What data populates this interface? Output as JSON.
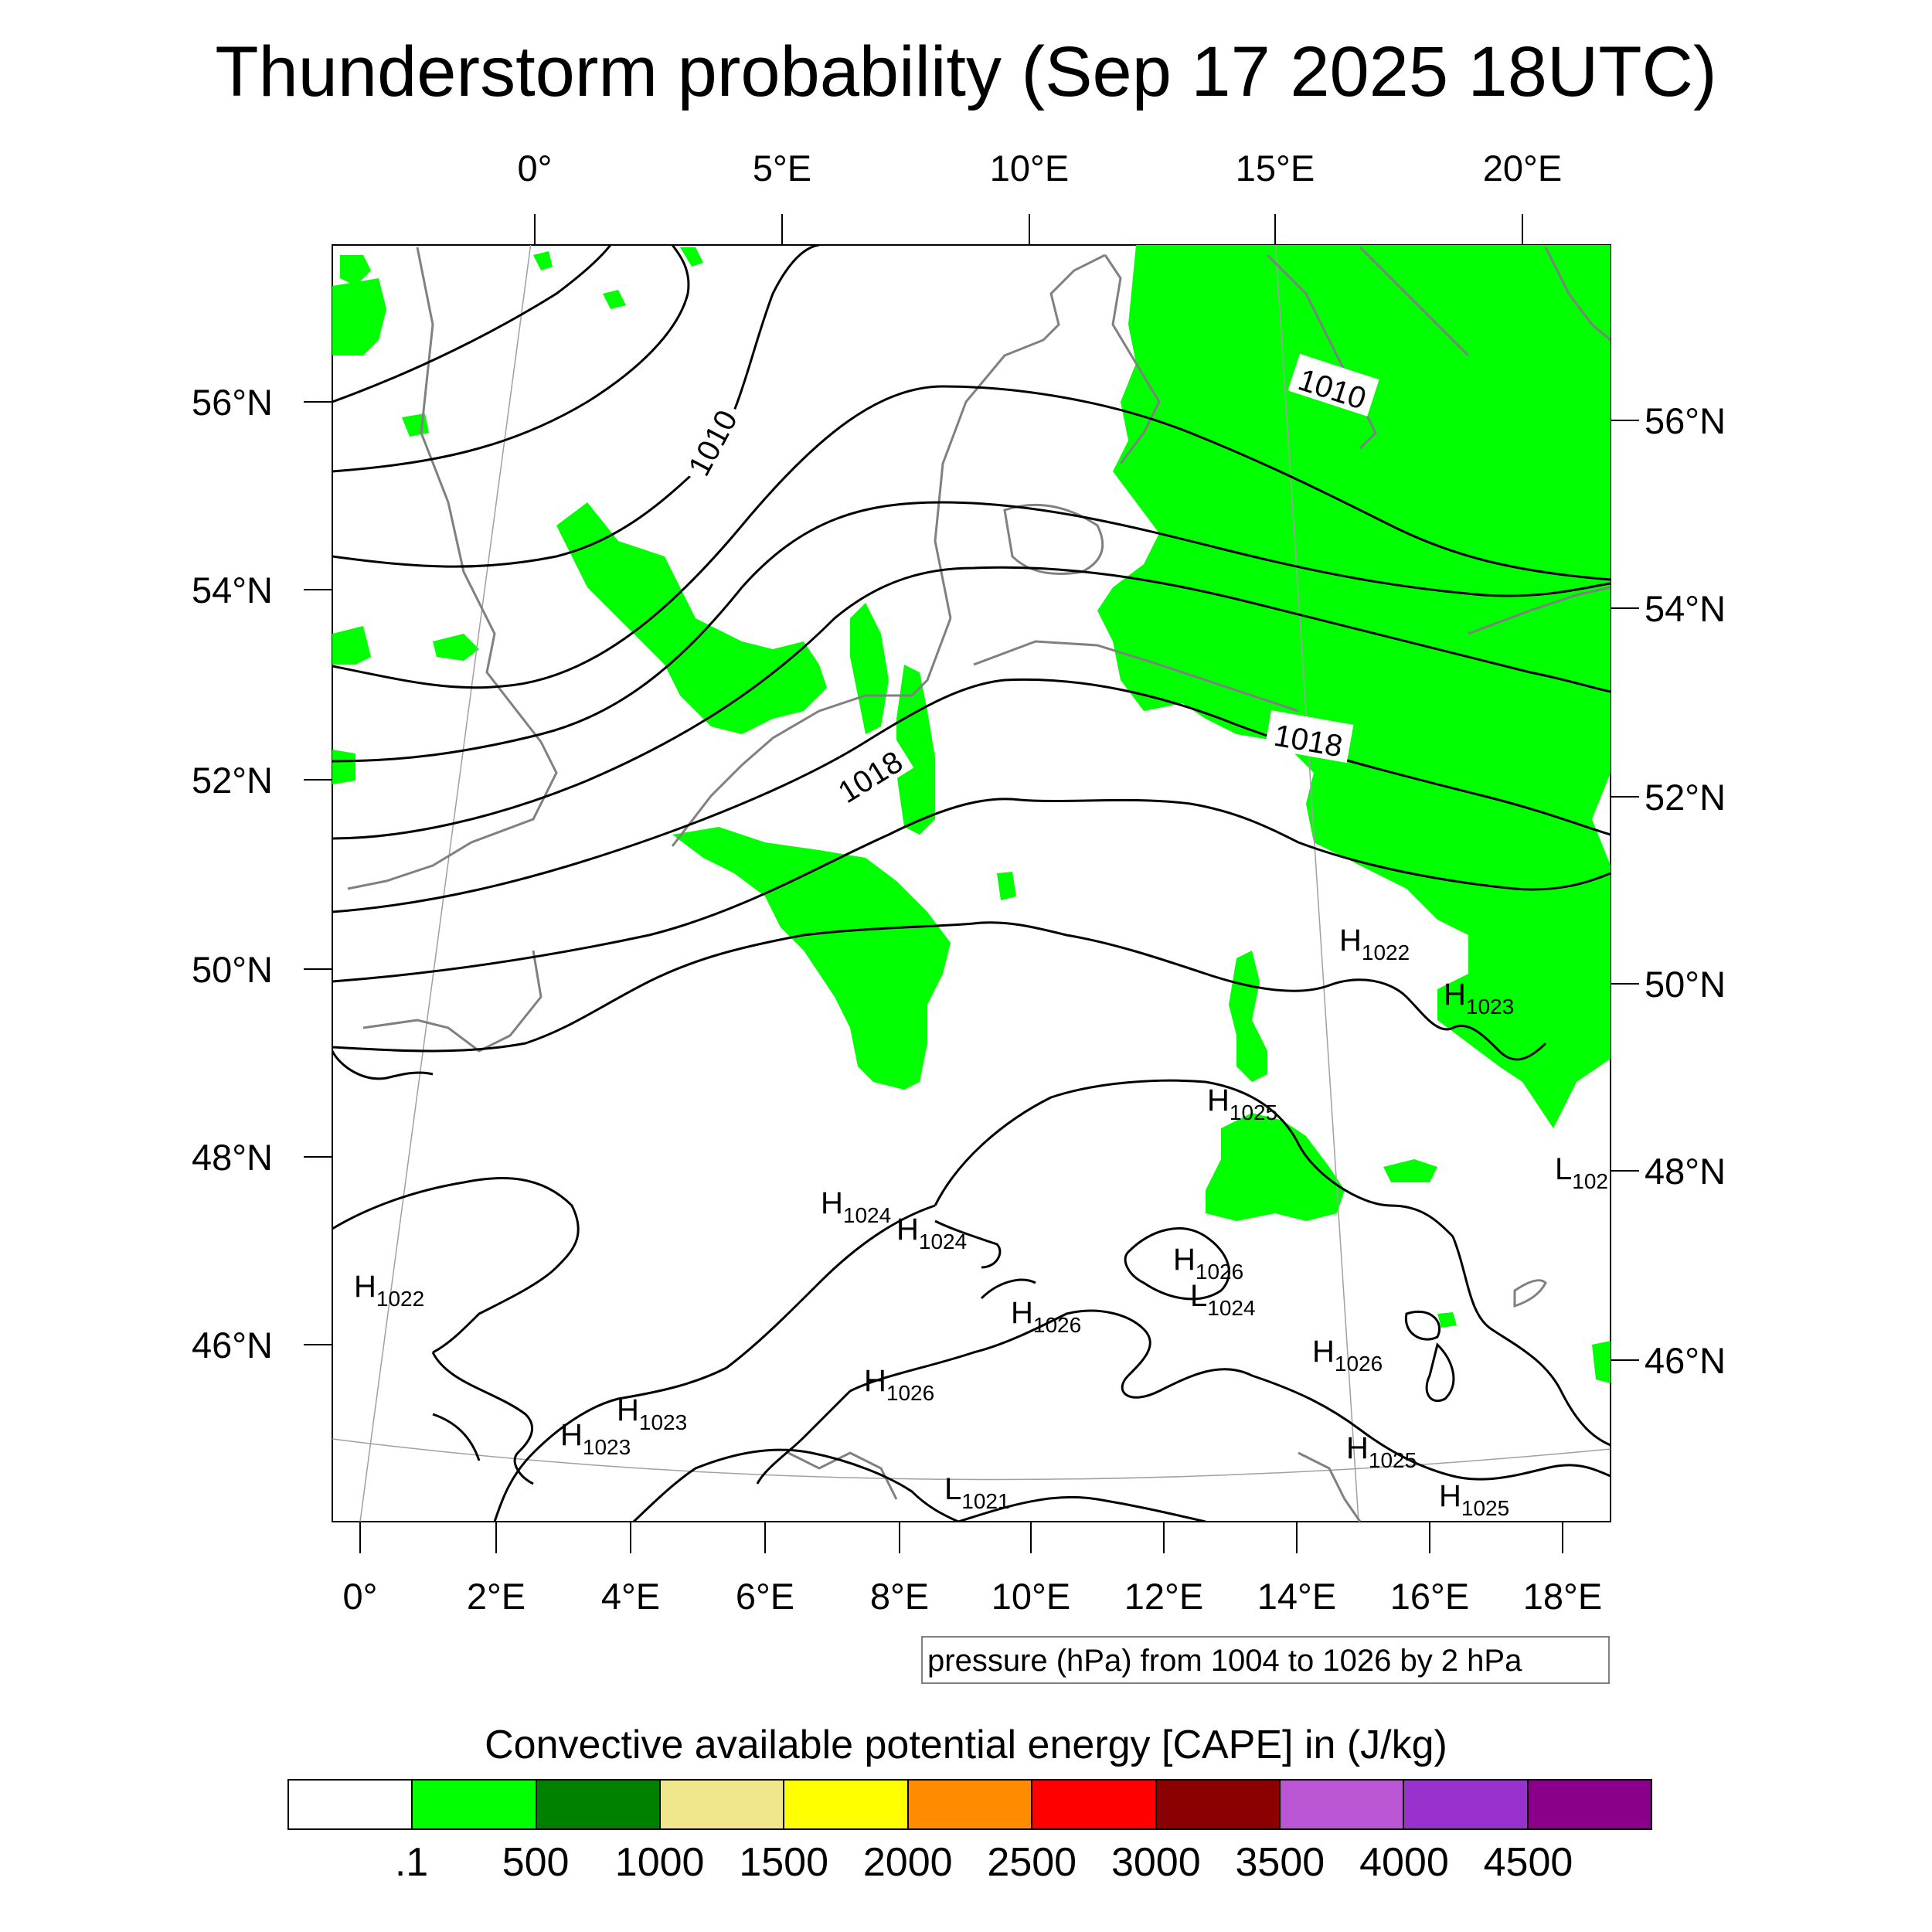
{
  "title": "Thunderstorm probability (Sep 17 2025 18UTC)",
  "map": {
    "top_lon_labels": [
      "0°",
      "5°E",
      "10°E",
      "15°E",
      "20°E"
    ],
    "bottom_lon_labels": [
      "0°",
      "2°E",
      "4°E",
      "6°E",
      "8°E",
      "10°E",
      "12°E",
      "14°E",
      "16°E",
      "18°E"
    ],
    "left_lat_labels": [
      "56°N",
      "54°N",
      "52°N",
      "50°N",
      "48°N",
      "46°N"
    ],
    "right_lat_labels": [
      "56°N",
      "54°N",
      "52°N",
      "50°N",
      "48°N",
      "46°N"
    ],
    "isobar_labels": [
      "1010",
      "1010",
      "1018",
      "1018"
    ],
    "pressure_centers": [
      {
        "type": "H",
        "value": "1022"
      },
      {
        "type": "H",
        "value": "1023"
      },
      {
        "type": "H",
        "value": "1025"
      },
      {
        "type": "L",
        "value": "102"
      },
      {
        "type": "H",
        "value": "1024"
      },
      {
        "type": "H",
        "value": "1024"
      },
      {
        "type": "H",
        "value": "1026"
      },
      {
        "type": "L",
        "value": "1024"
      },
      {
        "type": "H",
        "value": "1026"
      },
      {
        "type": "H",
        "value": "1026"
      },
      {
        "type": "H",
        "value": "1026"
      },
      {
        "type": "H",
        "value": "1022"
      },
      {
        "type": "H",
        "value": "1023"
      },
      {
        "type": "H",
        "value": "1023"
      },
      {
        "type": "L",
        "value": "1021"
      },
      {
        "type": "H",
        "value": "1025"
      },
      {
        "type": "H",
        "value": "1025"
      }
    ],
    "field_color": "#00ff00",
    "isobar_color": "#000000",
    "coast_color": "#808080"
  },
  "contour_info": "pressure (hPa) from 1004 to 1026 by 2 hPa",
  "colorbar": {
    "title": "Convective available potential energy [CAPE] in (J/kg)",
    "colors": [
      "#ffffff",
      "#00ff00",
      "#008000",
      "#f0e68c",
      "#ffff00",
      "#ff8c00",
      "#ff0000",
      "#8b0000",
      "#ba55d3",
      "#9932cc",
      "#8b008b"
    ],
    "tick_labels": [
      ".1",
      "500",
      "1000",
      "1500",
      "2000",
      "2500",
      "3000",
      "3500",
      "4000",
      "4500"
    ]
  }
}
